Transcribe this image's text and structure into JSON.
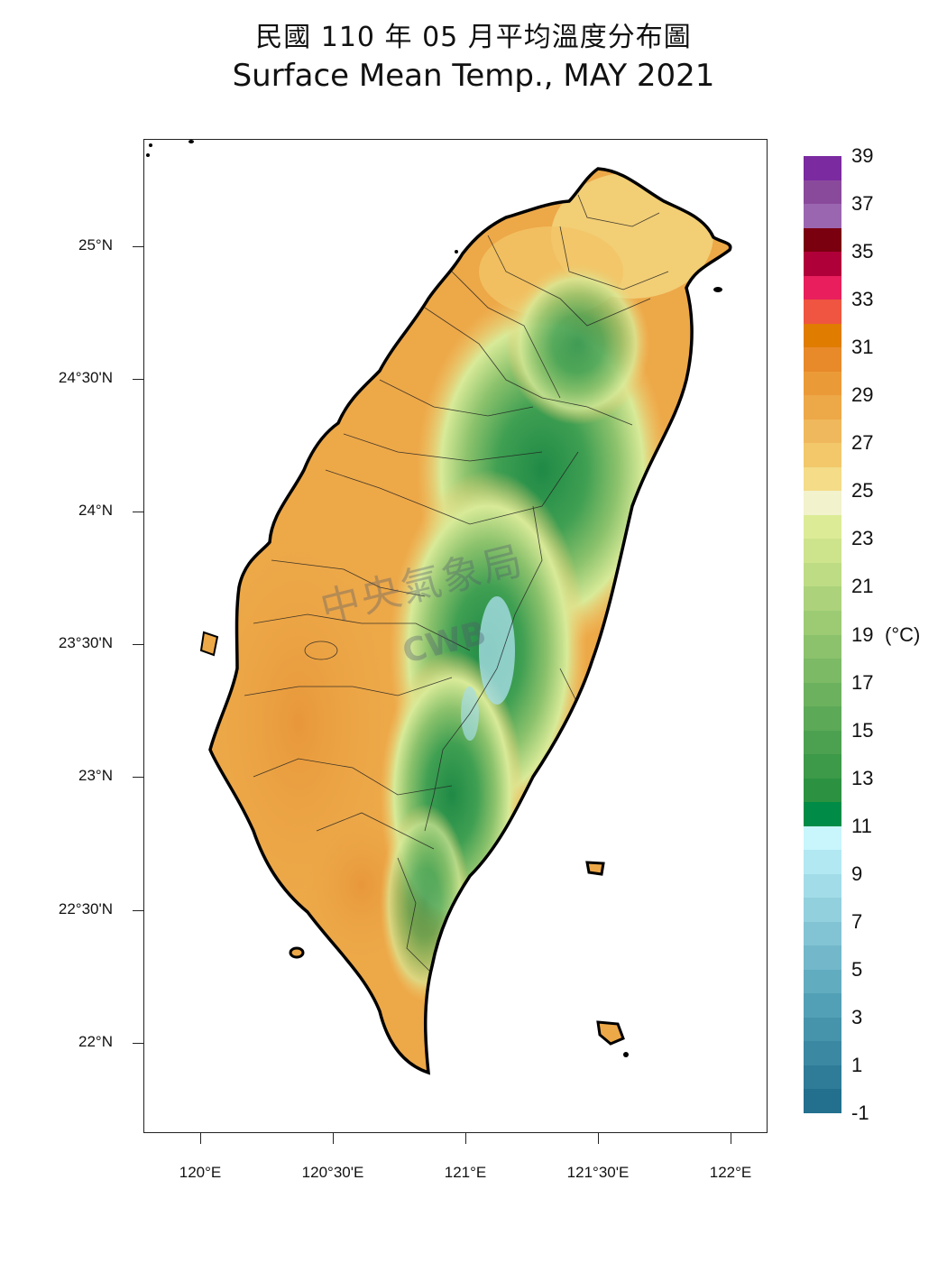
{
  "title": {
    "zh": "民國 110 年 05 月平均溫度分布圖",
    "en": "Surface Mean Temp., MAY 2021"
  },
  "watermark": {
    "zh": "中央氣象局",
    "en": "CWB"
  },
  "axes": {
    "y_labels": [
      "25°N",
      "24°30'N",
      "24°N",
      "23°30'N",
      "23°N",
      "22°30'N",
      "22°N"
    ],
    "x_labels": [
      "120°E",
      "120°30'E",
      "121°E",
      "121°30'E",
      "122°E"
    ]
  },
  "colorbar": {
    "unit": "(°C)",
    "labels": [
      "39",
      "37",
      "35",
      "33",
      "31",
      "29",
      "27",
      "25",
      "23",
      "21",
      "19",
      "17",
      "15",
      "13",
      "11",
      "9",
      "7",
      "5",
      "3",
      "1",
      "-1"
    ],
    "colors": [
      "#7b2aa0",
      "#8a4a9c",
      "#9b66b0",
      "#7a0010",
      "#b0003a",
      "#e81f5c",
      "#ef5540",
      "#e07c00",
      "#e88a2a",
      "#eb9a38",
      "#eda848",
      "#f0b85c",
      "#f2c86a",
      "#f4dc88",
      "#f2f2cc",
      "#dcec96",
      "#cde48c",
      "#bddc84",
      "#acd37c",
      "#9ccb74",
      "#8cc26c",
      "#7cba66",
      "#6cb25e",
      "#5ca958",
      "#4ca150",
      "#3c9a48",
      "#2c9242",
      "#008c46",
      "#c8f6fc",
      "#b2e8f2",
      "#a2dce8",
      "#92d0de",
      "#82c4d4",
      "#72b8ca",
      "#62acc0",
      "#52a0b6",
      "#4694ac",
      "#3a88a2",
      "#2e7c98",
      "#22708e"
    ]
  }
}
